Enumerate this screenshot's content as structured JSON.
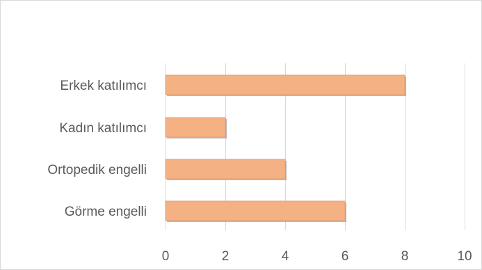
{
  "chart_data": {
    "type": "bar",
    "orientation": "horizontal",
    "title": "",
    "xlabel": "",
    "ylabel": "",
    "categories": [
      "Erkek katılımcı",
      "Kadın katılımcı",
      "Ortopedik engelli",
      "Görme engelli"
    ],
    "values": [
      8,
      2,
      4,
      6
    ],
    "xlim": [
      0,
      10
    ],
    "x_ticks": [
      "0",
      "2",
      "4",
      "6",
      "8",
      "10"
    ],
    "grid": true,
    "legend": "none",
    "colors": {
      "bar": "#f4b183",
      "grid": "#d9d9d9",
      "text": "#595959"
    }
  }
}
